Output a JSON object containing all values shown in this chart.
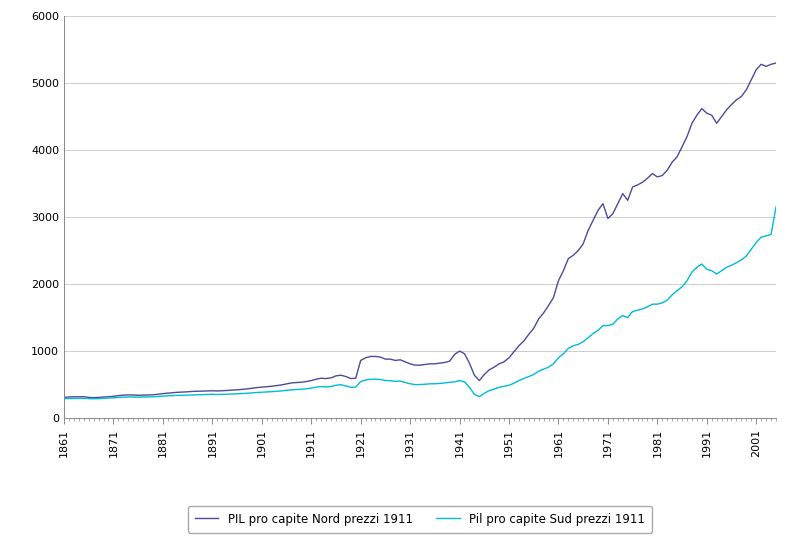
{
  "nord_color": "#4b4b9b",
  "sud_color": "#00bcd4",
  "legend_nord": "PIL pro capite Nord prezzi 1911",
  "legend_sud": "Pil pro capite Sud prezzi 1911",
  "ylim": [
    0,
    6000
  ],
  "yticks": [
    0,
    1000,
    2000,
    3000,
    4000,
    5000,
    6000
  ],
  "xlim_start": 1861,
  "xlim_end": 2005,
  "background": "#ffffff",
  "years": [
    1861,
    1862,
    1863,
    1864,
    1865,
    1866,
    1867,
    1868,
    1869,
    1870,
    1871,
    1872,
    1873,
    1874,
    1875,
    1876,
    1877,
    1878,
    1879,
    1880,
    1881,
    1882,
    1883,
    1884,
    1885,
    1886,
    1887,
    1888,
    1889,
    1890,
    1891,
    1892,
    1893,
    1894,
    1895,
    1896,
    1897,
    1898,
    1899,
    1900,
    1901,
    1902,
    1903,
    1904,
    1905,
    1906,
    1907,
    1908,
    1909,
    1910,
    1911,
    1912,
    1913,
    1914,
    1915,
    1916,
    1917,
    1918,
    1919,
    1920,
    1921,
    1922,
    1923,
    1924,
    1925,
    1926,
    1927,
    1928,
    1929,
    1930,
    1931,
    1932,
    1933,
    1934,
    1935,
    1936,
    1937,
    1938,
    1939,
    1940,
    1941,
    1942,
    1943,
    1944,
    1945,
    1946,
    1947,
    1948,
    1949,
    1950,
    1951,
    1952,
    1953,
    1954,
    1955,
    1956,
    1957,
    1958,
    1959,
    1960,
    1961,
    1962,
    1963,
    1964,
    1965,
    1966,
    1967,
    1968,
    1969,
    1970,
    1971,
    1972,
    1973,
    1974,
    1975,
    1976,
    1977,
    1978,
    1979,
    1980,
    1981,
    1982,
    1983,
    1984,
    1985,
    1986,
    1987,
    1988,
    1989,
    1990,
    1991,
    1992,
    1993,
    1994,
    1995,
    1996,
    1997,
    1998,
    1999,
    2000,
    2001,
    2002,
    2003,
    2004,
    2005
  ],
  "nord": [
    310,
    315,
    318,
    318,
    320,
    308,
    305,
    308,
    315,
    318,
    325,
    335,
    342,
    345,
    345,
    340,
    342,
    345,
    348,
    355,
    365,
    372,
    380,
    385,
    388,
    392,
    398,
    400,
    402,
    405,
    408,
    405,
    408,
    412,
    418,
    422,
    428,
    435,
    445,
    455,
    462,
    468,
    475,
    485,
    495,
    510,
    525,
    530,
    535,
    545,
    560,
    580,
    595,
    590,
    600,
    630,
    640,
    620,
    590,
    595,
    860,
    900,
    920,
    920,
    910,
    880,
    880,
    860,
    870,
    840,
    810,
    790,
    790,
    800,
    810,
    810,
    820,
    830,
    850,
    950,
    1000,
    960,
    820,
    640,
    560,
    650,
    720,
    760,
    810,
    840,
    900,
    990,
    1080,
    1150,
    1250,
    1340,
    1480,
    1570,
    1680,
    1800,
    2050,
    2200,
    2380,
    2430,
    2500,
    2600,
    2800,
    2950,
    3100,
    3200,
    2980,
    3050,
    3200,
    3350,
    3250,
    3450,
    3480,
    3520,
    3580,
    3650,
    3600,
    3620,
    3700,
    3820,
    3900,
    4050,
    4200,
    4400,
    4520,
    4620,
    4550,
    4520,
    4400,
    4500,
    4600,
    4680,
    4750,
    4800,
    4900,
    5050,
    5200,
    5280,
    5250,
    5280,
    5300
  ],
  "sud": [
    290,
    292,
    295,
    295,
    296,
    290,
    288,
    290,
    295,
    298,
    302,
    308,
    312,
    315,
    315,
    312,
    314,
    316,
    318,
    322,
    328,
    332,
    336,
    338,
    340,
    343,
    346,
    348,
    350,
    352,
    355,
    352,
    354,
    356,
    360,
    362,
    366,
    370,
    376,
    382,
    386,
    390,
    394,
    400,
    406,
    415,
    422,
    426,
    430,
    438,
    448,
    462,
    470,
    465,
    472,
    490,
    498,
    480,
    460,
    462,
    545,
    570,
    580,
    580,
    575,
    560,
    558,
    548,
    552,
    532,
    512,
    500,
    500,
    505,
    512,
    512,
    518,
    524,
    534,
    540,
    560,
    540,
    460,
    355,
    320,
    370,
    410,
    432,
    460,
    475,
    490,
    520,
    560,
    590,
    620,
    650,
    700,
    730,
    760,
    810,
    900,
    960,
    1040,
    1080,
    1100,
    1140,
    1200,
    1260,
    1310,
    1380,
    1380,
    1400,
    1480,
    1530,
    1500,
    1590,
    1610,
    1630,
    1660,
    1700,
    1700,
    1720,
    1760,
    1840,
    1900,
    1960,
    2050,
    2180,
    2250,
    2300,
    2220,
    2200,
    2150,
    2200,
    2250,
    2280,
    2320,
    2360,
    2420,
    2520,
    2620,
    2700,
    2720,
    2740,
    3150
  ]
}
